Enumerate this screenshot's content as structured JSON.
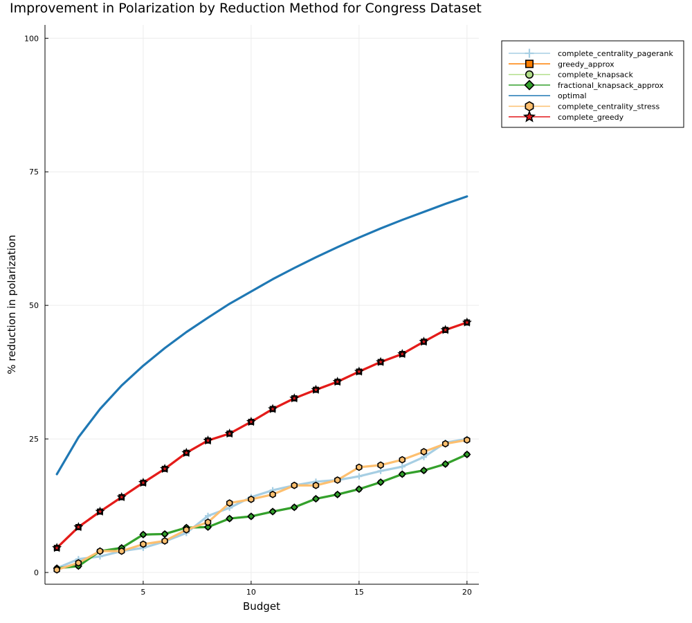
{
  "chart_data": {
    "type": "line",
    "title": "Improvement in Polarization by Reduction Method for Congress Dataset",
    "xlabel": "Budget",
    "ylabel": "% reduction in polarization",
    "xlim": [
      0.45,
      20.55
    ],
    "ylim": [
      -2.2,
      102.5
    ],
    "xticks": [
      5,
      10,
      15,
      20
    ],
    "yticks": [
      0,
      25,
      50,
      75,
      100
    ],
    "grid": true,
    "legend_position": "top-right-outside",
    "x": [
      1,
      2,
      3,
      4,
      5,
      6,
      7,
      8,
      9,
      10,
      11,
      12,
      13,
      14,
      15,
      16,
      17,
      18,
      19,
      20
    ],
    "series": [
      {
        "name": "complete_centrality_pagerank",
        "color": "#a6cee3",
        "marker": "cross",
        "values": [
          0.8,
          2.5,
          3.0,
          4.0,
          4.6,
          5.8,
          7.4,
          10.6,
          12.1,
          14.1,
          15.4,
          16.3,
          17.0,
          17.3,
          18.0,
          19.0,
          19.8,
          21.6,
          24.3,
          25.0
        ]
      },
      {
        "name": "greedy_approx",
        "color": "#ff7f00",
        "marker": "square",
        "values": [
          4.6,
          8.5,
          11.4,
          14.1,
          16.8,
          19.4,
          22.4,
          24.7,
          26.0,
          28.2,
          30.6,
          32.6,
          34.2,
          35.7,
          37.6,
          39.4,
          40.9,
          43.2,
          45.4,
          46.8
        ]
      },
      {
        "name": "complete_knapsack",
        "color": "#b2df8a",
        "marker": "circle",
        "values": [
          0.8,
          1.2,
          4.0,
          4.6,
          7.1,
          7.2,
          8.4,
          8.5,
          10.1,
          10.5,
          11.4,
          12.2,
          13.8,
          14.6,
          15.6,
          16.9,
          18.4,
          19.1,
          20.3,
          22.1
        ]
      },
      {
        "name": "fractional_knapsack_approx",
        "color": "#33a02c",
        "marker": "diamond",
        "values": [
          0.8,
          1.2,
          4.0,
          4.6,
          7.1,
          7.2,
          8.4,
          8.5,
          10.1,
          10.5,
          11.4,
          12.2,
          13.8,
          14.6,
          15.6,
          16.9,
          18.4,
          19.1,
          20.3,
          22.1
        ]
      },
      {
        "name": "optimal",
        "color": "#1f78b4",
        "marker": "none",
        "values": [
          18.4,
          25.3,
          30.6,
          35.0,
          38.7,
          42.0,
          45.0,
          47.7,
          50.3,
          52.6,
          54.9,
          57.0,
          59.0,
          60.9,
          62.7,
          64.4,
          66.0,
          67.5,
          69.0,
          70.4
        ]
      },
      {
        "name": "complete_centrality_stress",
        "color": "#fdbf6f",
        "marker": "hexagon",
        "values": [
          0.5,
          1.8,
          4.0,
          4.0,
          5.3,
          5.9,
          8.0,
          9.4,
          13.0,
          13.7,
          14.6,
          16.3,
          16.3,
          17.3,
          19.7,
          20.1,
          21.1,
          22.6,
          24.1,
          24.8
        ]
      },
      {
        "name": "complete_greedy",
        "color": "#e31a1c",
        "marker": "star",
        "values": [
          4.6,
          8.5,
          11.4,
          14.1,
          16.8,
          19.4,
          22.4,
          24.7,
          26.0,
          28.2,
          30.6,
          32.6,
          34.2,
          35.7,
          37.6,
          39.4,
          40.9,
          43.2,
          45.4,
          46.8
        ]
      }
    ]
  }
}
